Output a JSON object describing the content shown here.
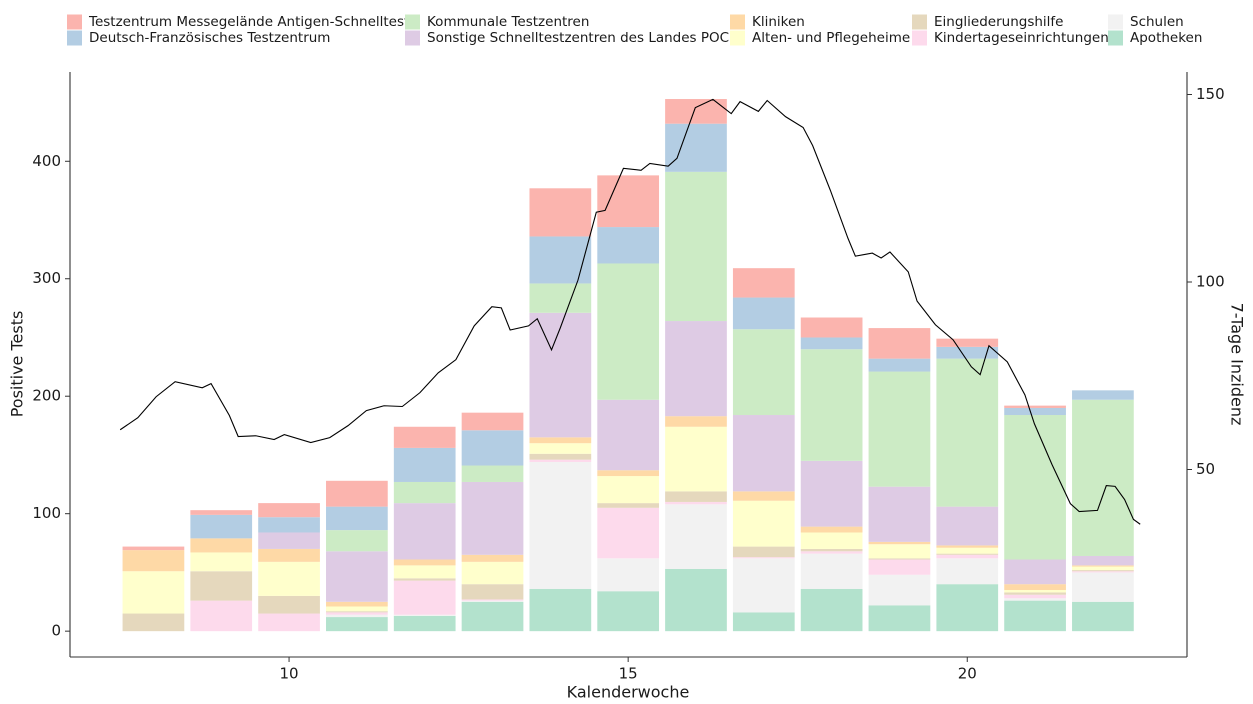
{
  "chart_data": {
    "type": "bar",
    "stacked": true,
    "x": [
      8,
      9,
      10,
      11,
      12,
      13,
      14,
      15,
      16,
      17,
      18,
      19,
      20,
      21,
      22
    ],
    "xlim": [
      6.77,
      23.24
    ],
    "xticks": [
      10,
      15,
      20
    ],
    "ylim": [
      -22,
      476
    ],
    "yticks": [
      0,
      100,
      200,
      300,
      400
    ],
    "y2lim": [
      0,
      156
    ],
    "y2ticks": [
      50,
      100,
      150
    ],
    "x_label": "Kalenderwoche",
    "y_label": "Positive Tests",
    "y2_label": "7-Tage Inzidenz",
    "series": [
      {
        "name": "Testzentrum Messegelände Antigen-Schnelltest",
        "color": "#fbb4ae",
        "values": [
          3,
          4,
          12,
          22,
          18,
          15,
          41,
          44,
          21,
          25,
          17,
          26,
          7,
          2,
          0
        ]
      },
      {
        "name": "Deutsch-Französisches Testzentrum",
        "color": "#b3cde3",
        "values": [
          0,
          20,
          13,
          20,
          29,
          30,
          40,
          31,
          41,
          27,
          10,
          11,
          10,
          6,
          8
        ]
      },
      {
        "name": "Kommunale Testzentren",
        "color": "#ccebc5",
        "values": [
          0,
          0,
          0,
          18,
          18,
          14,
          25,
          116,
          127,
          73,
          95,
          98,
          126,
          123,
          133
        ]
      },
      {
        "name": "Sonstige Schnelltestzentren des Landes POC",
        "color": "#decbe4",
        "values": [
          0,
          0,
          14,
          43,
          48,
          62,
          106,
          60,
          81,
          65,
          56,
          47,
          33,
          21,
          8
        ]
      },
      {
        "name": "Kliniken",
        "color": "#fed9a6",
        "values": [
          18,
          12,
          11,
          4,
          5,
          6,
          5,
          5,
          9,
          8,
          5,
          2,
          2,
          5,
          1
        ]
      },
      {
        "name": "Alten- und Pflegeheime",
        "color": "#ffffcc",
        "values": [
          36,
          16,
          29,
          4,
          11,
          19,
          9,
          23,
          55,
          39,
          14,
          12,
          5,
          2,
          3
        ]
      },
      {
        "name": "Eingliederungshilfe",
        "color": "#e5d8bd",
        "values": [
          15,
          25,
          15,
          1,
          2,
          13,
          5,
          4,
          9,
          9,
          2,
          1,
          1,
          2,
          1
        ]
      },
      {
        "name": "Kindertageseinrichtungen",
        "color": "#fddaec",
        "values": [
          0,
          26,
          15,
          2,
          29,
          1,
          2,
          43,
          2,
          1,
          2,
          13,
          3,
          3,
          1
        ]
      },
      {
        "name": "Schulen",
        "color": "#f2f2f2",
        "values": [
          0,
          0,
          0,
          2,
          1,
          1,
          108,
          28,
          55,
          46,
          30,
          26,
          22,
          2,
          25
        ]
      },
      {
        "name": "Apotheken",
        "color": "#b3e2cd",
        "values": [
          0,
          0,
          0,
          12,
          13,
          25,
          36,
          34,
          53,
          16,
          36,
          22,
          40,
          26,
          25
        ]
      }
    ],
    "line": {
      "type": "line",
      "axis": "y2",
      "color": "#000000",
      "x": [
        7.51,
        7.77,
        8.04,
        8.32,
        8.72,
        8.85,
        9.12,
        9.25,
        9.51,
        9.78,
        9.93,
        10.32,
        10.6,
        10.87,
        11.14,
        11.4,
        11.67,
        11.93,
        12.2,
        12.46,
        12.73,
        12.99,
        13.13,
        13.26,
        13.53,
        13.66,
        13.87,
        14.0,
        14.26,
        14.53,
        14.66,
        14.93,
        15.19,
        15.32,
        15.59,
        15.72,
        15.99,
        16.25,
        16.52,
        16.65,
        16.92,
        17.05,
        17.32,
        17.58,
        17.72,
        17.98,
        18.24,
        18.35,
        18.6,
        18.73,
        18.86,
        19.13,
        19.26,
        19.53,
        19.79,
        20.06,
        20.19,
        20.32,
        20.59,
        20.85,
        20.99,
        21.25,
        21.52,
        21.65,
        21.92,
        22.05,
        22.18,
        22.32,
        22.45,
        22.55
      ],
      "values": [
        60.6,
        63.8,
        69.4,
        73.4,
        71.8,
        72.9,
        64.4,
        58.8,
        59.0,
        58.0,
        59.3,
        57.2,
        58.5,
        61.7,
        65.7,
        67.0,
        66.8,
        70.5,
        75.8,
        79.3,
        88.3,
        93.4,
        93.1,
        87.2,
        88.3,
        90.2,
        81.9,
        87.8,
        100.5,
        118.6,
        119.1,
        130.3,
        129.8,
        131.6,
        130.9,
        133.0,
        146.5,
        148.7,
        144.9,
        148.1,
        145.5,
        148.4,
        144.1,
        141.2,
        136.4,
        124.5,
        111.7,
        106.9,
        107.7,
        106.4,
        108.0,
        102.7,
        94.9,
        88.6,
        84.6,
        77.4,
        75.3,
        83.0,
        78.7,
        69.9,
        62.2,
        51.3,
        40.9,
        38.8,
        39.1,
        45.7,
        45.5,
        42.0,
        36.7,
        35.4
      ]
    }
  }
}
